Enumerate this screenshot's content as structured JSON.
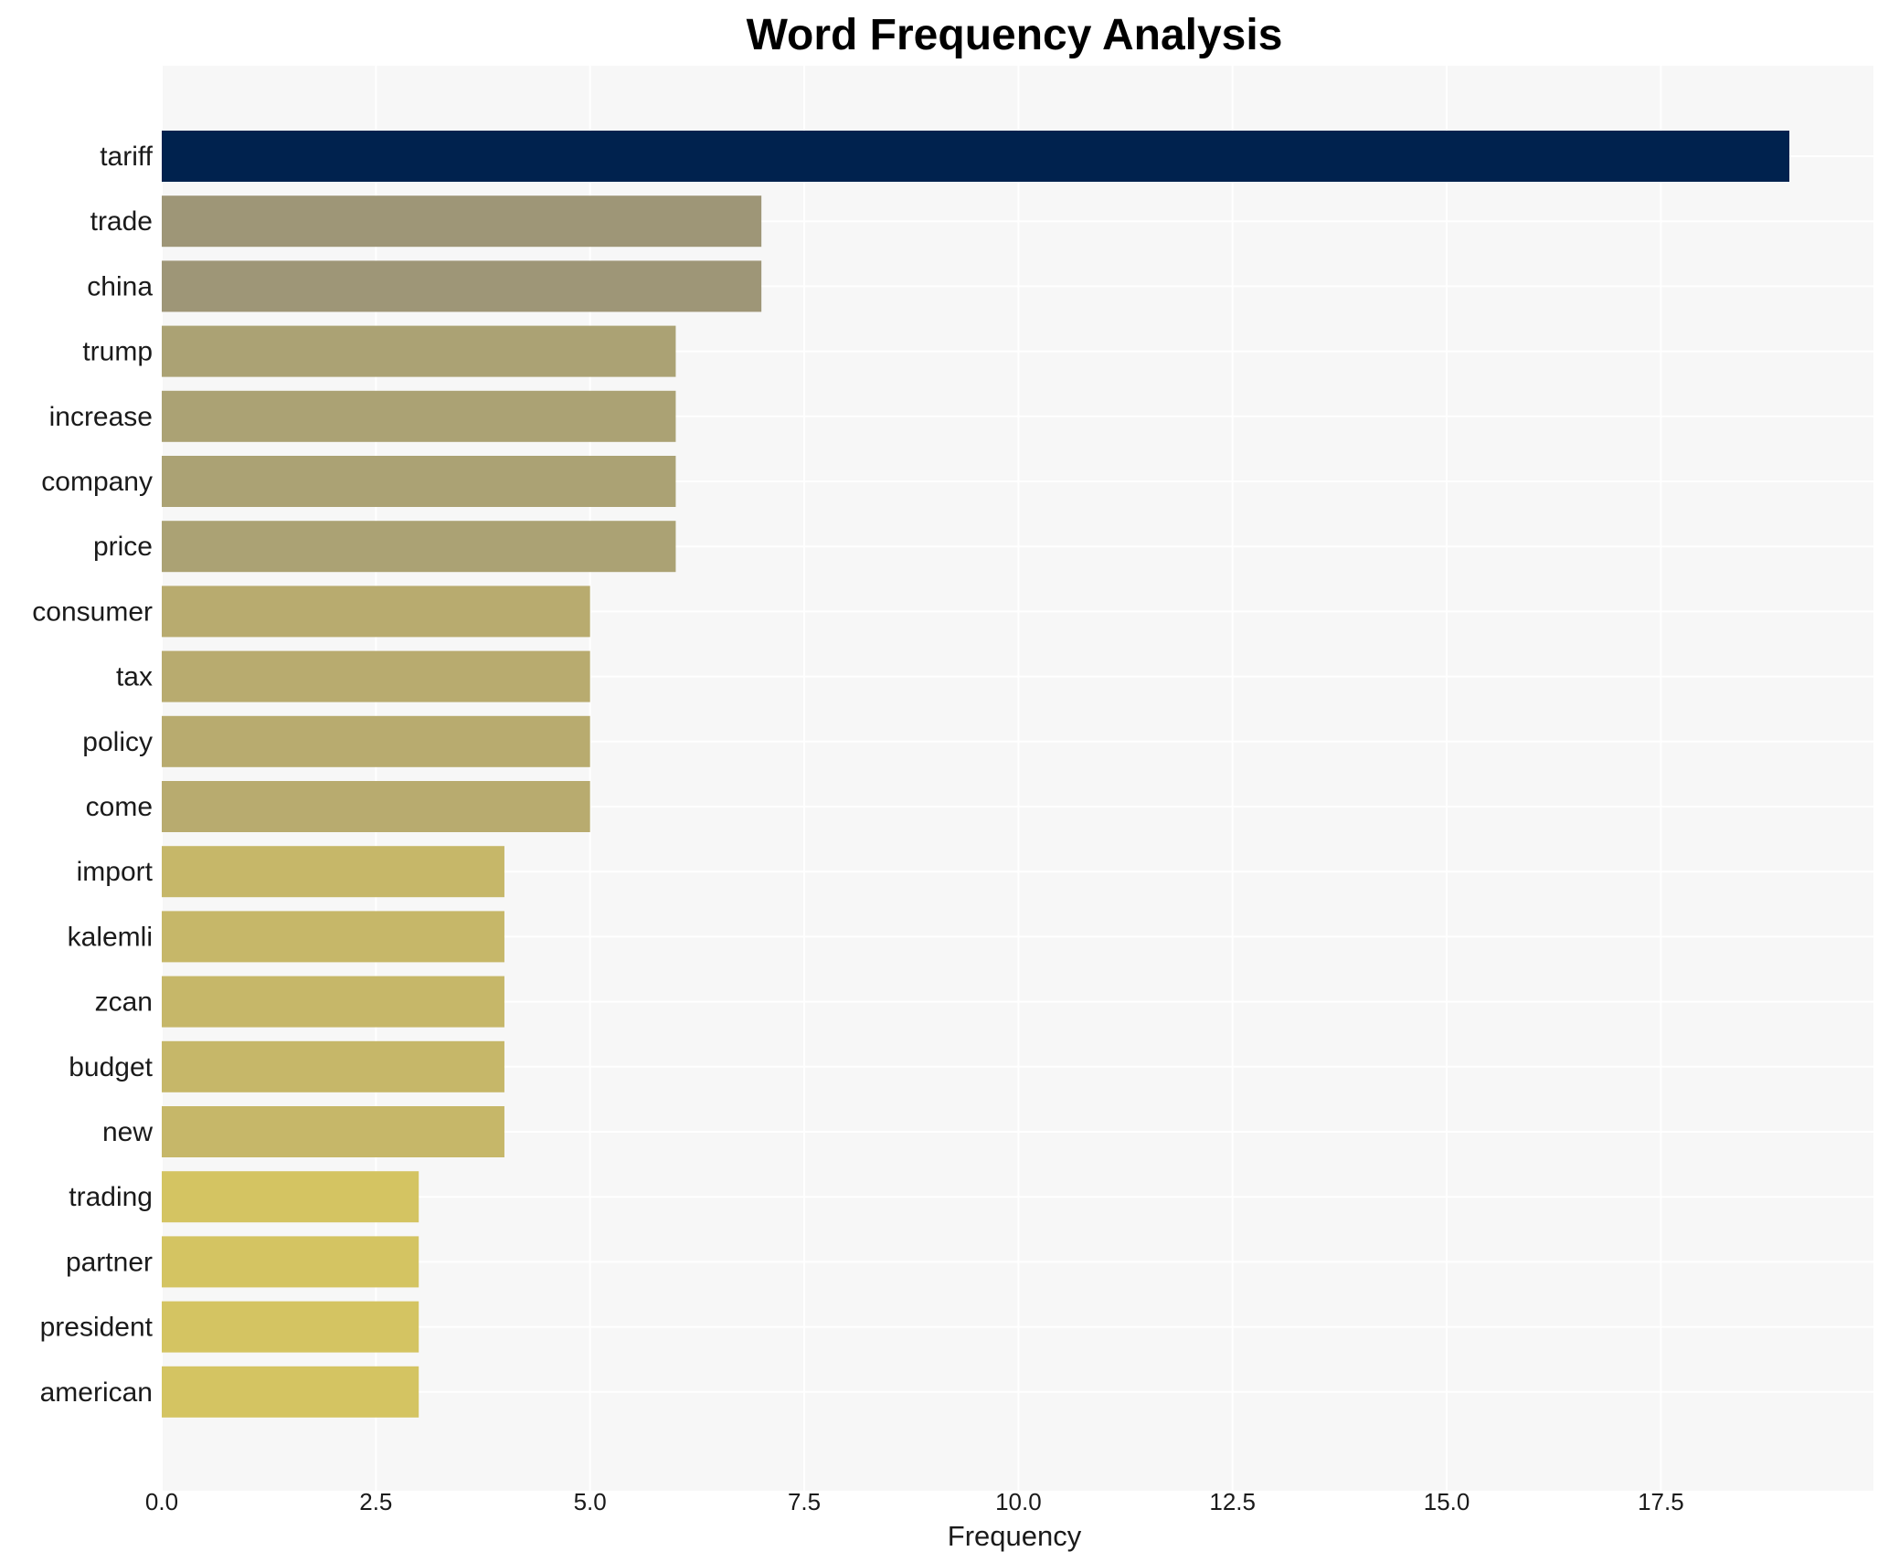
{
  "chart_data": {
    "type": "bar",
    "orientation": "horizontal",
    "title": "Word Frequency Analysis",
    "xlabel": "Frequency",
    "ylabel": "",
    "categories": [
      "tariff",
      "trade",
      "china",
      "trump",
      "increase",
      "company",
      "price",
      "consumer",
      "tax",
      "policy",
      "come",
      "import",
      "kalemli",
      "zcan",
      "budget",
      "new",
      "trading",
      "partner",
      "president",
      "american"
    ],
    "values": [
      19,
      7,
      7,
      6,
      6,
      6,
      6,
      5,
      5,
      5,
      5,
      4,
      4,
      4,
      4,
      4,
      3,
      3,
      3,
      3
    ],
    "xlim": [
      0,
      20
    ],
    "xticks": [
      0,
      2.5,
      5,
      7.5,
      10,
      12.5,
      15,
      17.5
    ],
    "xtick_labels": [
      "0.0",
      "2.5",
      "5.0",
      "7.5",
      "10.0",
      "12.5",
      "15.0",
      "17.5"
    ],
    "grid": true,
    "legend": "none",
    "colors": {
      "19": "#00224e",
      "7": "#9e9677",
      "6": "#aba274",
      "5": "#b8ab6f",
      "4": "#c6b769",
      "3": "#d4c462"
    },
    "background": "#f7f7f7",
    "grid_color": "#ffffff"
  }
}
